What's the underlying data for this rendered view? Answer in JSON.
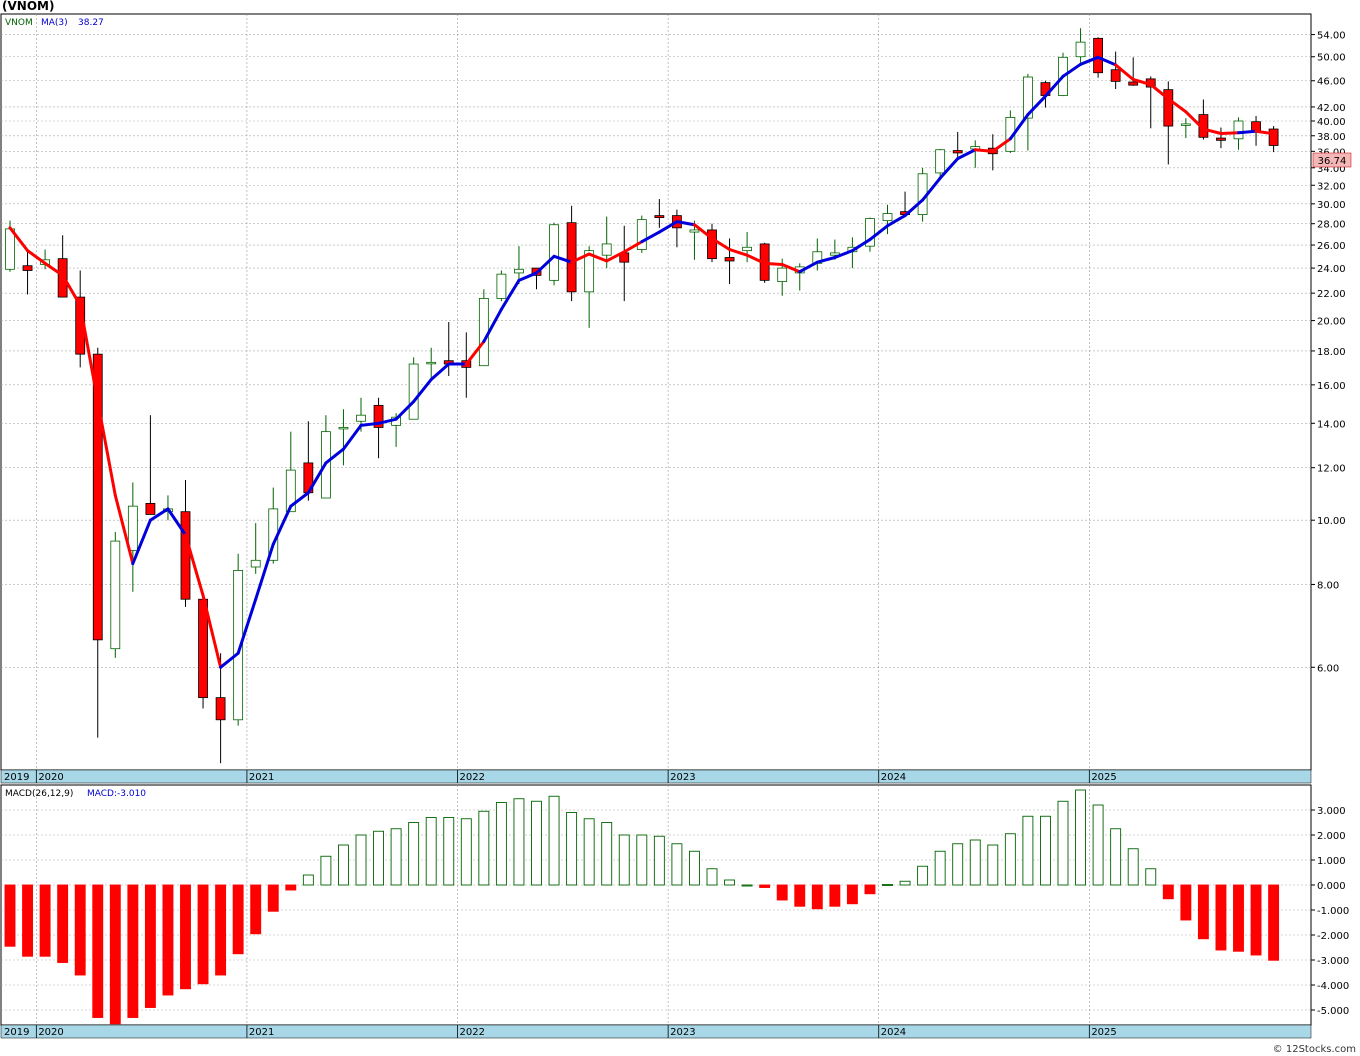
{
  "title": "(VNOM)",
  "credit": "© 12Stocks.com",
  "legend": {
    "symbol": "VNOM",
    "ma_label": "MA(3)",
    "ma_value": "38.27",
    "macd_label": "MACD(26,12,9)",
    "macd_value_label": "MACD:-3.010"
  },
  "last_price_label": "36.74",
  "colors": {
    "up_candle": "#006400",
    "down_candle": "#ff0000",
    "ma_up": "#0000dd",
    "ma_down": "#ff0000",
    "macd_pos": "#006400",
    "macd_neg": "#ff0000",
    "axis_band": "#a8d8e8",
    "grid": "#aaaaaa"
  },
  "chart_data": [
    {
      "type": "candlestick",
      "interval": "monthly",
      "scale": "log",
      "start": "2019-11",
      "ylim": [
        4.2,
        58
      ],
      "yticks": [
        6.0,
        8.0,
        10.0,
        12.0,
        14.0,
        16.0,
        18.0,
        20.0,
        22.0,
        24.0,
        26.0,
        28.0,
        30.0,
        32.0,
        34.0,
        36.0,
        38.0,
        40.0,
        42.0,
        46.0,
        50.0,
        54.0
      ],
      "ytick_labels": [
        "6.00",
        "8.00",
        "10.00",
        "12.00",
        "14.00",
        "16.00",
        "18.00",
        "20.00",
        "22.00",
        "24.00",
        "26.00",
        "28.00",
        "30.00",
        "32.00",
        "34.00",
        "36.00",
        "38.00",
        "40.00",
        "42.00",
        "46.00",
        "50.00",
        "54.00"
      ],
      "xticks": [
        "2019",
        "2020",
        "2021",
        "2022",
        "2023",
        "2024",
        "2025"
      ],
      "ohlc": [
        [
          23.9,
          28.3,
          23.7,
          27.5
        ],
        [
          24.2,
          25.5,
          21.9,
          23.8
        ],
        [
          24.3,
          25.6,
          23.9,
          24.7
        ],
        [
          24.8,
          26.9,
          21.7,
          21.7
        ],
        [
          21.7,
          23.8,
          17.0,
          17.8
        ],
        [
          17.8,
          18.2,
          4.7,
          6.6
        ],
        [
          6.4,
          9.6,
          6.2,
          9.3
        ],
        [
          9.0,
          11.4,
          7.8,
          10.5
        ],
        [
          10.6,
          14.4,
          10.3,
          10.2
        ],
        [
          10.3,
          10.9,
          10.0,
          10.4
        ],
        [
          10.3,
          11.5,
          7.4,
          7.6
        ],
        [
          7.6,
          7.8,
          5.2,
          5.4
        ],
        [
          5.4,
          6.3,
          4.3,
          5.0
        ],
        [
          5.0,
          8.9,
          4.9,
          8.4
        ],
        [
          8.5,
          9.9,
          8.3,
          8.7
        ],
        [
          8.7,
          11.2,
          8.6,
          10.4
        ],
        [
          10.3,
          13.6,
          10.3,
          11.9
        ],
        [
          12.2,
          14.1,
          10.7,
          11.0
        ],
        [
          10.8,
          14.4,
          10.8,
          13.6
        ],
        [
          13.8,
          14.7,
          12.1,
          13.8
        ],
        [
          14.1,
          15.3,
          13.6,
          14.4
        ],
        [
          14.9,
          15.3,
          12.4,
          13.8
        ],
        [
          13.9,
          14.5,
          12.9,
          14.3
        ],
        [
          14.2,
          17.6,
          14.2,
          17.2
        ],
        [
          17.3,
          18.2,
          16.4,
          17.3
        ],
        [
          17.4,
          19.9,
          16.5,
          17.2
        ],
        [
          17.4,
          19.2,
          15.3,
          17.0
        ],
        [
          17.1,
          22.3,
          17.1,
          21.6
        ],
        [
          21.6,
          23.8,
          21.4,
          23.5
        ],
        [
          23.6,
          25.9,
          22.7,
          23.9
        ],
        [
          24.0,
          24.0,
          22.3,
          23.4
        ],
        [
          23.0,
          28.1,
          22.6,
          27.9
        ],
        [
          28.1,
          29.8,
          21.4,
          22.1
        ],
        [
          22.1,
          25.9,
          19.5,
          25.5
        ],
        [
          25.1,
          28.7,
          24.0,
          26.1
        ],
        [
          25.3,
          27.8,
          21.4,
          24.5
        ],
        [
          25.6,
          28.8,
          25.3,
          28.4
        ],
        [
          28.8,
          30.5,
          27.6,
          28.6
        ],
        [
          28.8,
          29.4,
          25.8,
          27.6
        ],
        [
          27.2,
          28.3,
          24.7,
          27.4
        ],
        [
          27.4,
          28.0,
          24.5,
          24.8
        ],
        [
          24.9,
          26.6,
          22.7,
          24.6
        ],
        [
          25.5,
          27.2,
          24.5,
          25.8
        ],
        [
          26.1,
          26.2,
          22.8,
          23.0
        ],
        [
          22.9,
          24.8,
          21.8,
          24.0
        ],
        [
          23.6,
          24.4,
          22.2,
          24.1
        ],
        [
          24.4,
          26.6,
          23.8,
          25.4
        ],
        [
          25.1,
          26.5,
          24.7,
          25.3
        ],
        [
          25.4,
          26.7,
          24.0,
          25.8
        ],
        [
          25.9,
          28.6,
          25.4,
          28.5
        ],
        [
          28.3,
          29.9,
          27.0,
          29.0
        ],
        [
          29.2,
          31.3,
          28.8,
          28.9
        ],
        [
          28.9,
          34.0,
          28.2,
          33.3
        ],
        [
          33.4,
          36.3,
          32.7,
          36.2
        ],
        [
          36.1,
          38.5,
          35.2,
          35.8
        ],
        [
          36.3,
          37.4,
          34.0,
          36.6
        ],
        [
          36.4,
          38.2,
          33.7,
          35.7
        ],
        [
          36.0,
          41.5,
          35.8,
          40.5
        ],
        [
          40.4,
          47.1,
          36.1,
          46.6
        ],
        [
          45.7,
          46.0,
          41.9,
          43.7
        ],
        [
          43.7,
          50.7,
          43.6,
          49.9
        ],
        [
          50.0,
          55.2,
          49.0,
          52.6
        ],
        [
          53.3,
          53.5,
          46.5,
          47.3
        ],
        [
          47.8,
          50.9,
          44.7,
          45.9
        ],
        [
          45.8,
          49.9,
          45.2,
          45.3
        ],
        [
          46.3,
          46.7,
          39.0,
          45.0
        ],
        [
          44.6,
          45.9,
          34.4,
          39.3
        ],
        [
          39.4,
          40.4,
          37.7,
          39.6
        ],
        [
          40.9,
          43.1,
          37.5,
          37.8
        ],
        [
          37.7,
          39.1,
          36.4,
          37.4
        ],
        [
          37.6,
          40.5,
          36.2,
          40.0
        ],
        [
          39.9,
          40.7,
          36.7,
          38.5
        ],
        [
          38.9,
          39.3,
          35.9,
          36.74
        ]
      ],
      "ma3": [
        27.6,
        25.5,
        24.4,
        23.4,
        21.1,
        15.1,
        10.9,
        8.6,
        10.0,
        10.4,
        9.5,
        7.7,
        6.0,
        6.3,
        7.6,
        9.2,
        10.5,
        11.0,
        12.2,
        12.8,
        13.9,
        14.0,
        14.2,
        15.1,
        16.3,
        17.2,
        17.2,
        18.6,
        20.8,
        23.0,
        23.6,
        25.0,
        24.5,
        25.2,
        24.6,
        25.4,
        26.3,
        27.2,
        28.2,
        27.9,
        26.6,
        25.6,
        25.1,
        24.4,
        24.3,
        23.7,
        24.5,
        24.9,
        25.5,
        26.5,
        27.8,
        28.8,
        30.4,
        32.8,
        35.1,
        36.2,
        36.0,
        37.6,
        40.9,
        43.6,
        46.7,
        48.7,
        49.9,
        48.6,
        46.2,
        45.4,
        43.2,
        41.3,
        38.9,
        38.3,
        38.4,
        38.6,
        38.27
      ],
      "ma_dir": [
        0,
        0,
        0,
        0,
        0,
        0,
        0,
        1,
        1,
        1,
        0,
        0,
        1,
        1,
        1,
        1,
        1,
        1,
        1,
        1,
        1,
        1,
        1,
        1,
        1,
        1,
        0,
        1,
        1,
        1,
        1,
        1,
        0,
        0,
        0,
        0,
        1,
        1,
        1,
        0,
        0,
        0,
        0,
        0,
        0,
        1,
        1,
        1,
        1,
        1,
        1,
        1,
        1,
        1,
        1,
        0,
        0,
        1,
        1,
        1,
        1,
        1,
        1,
        0,
        0,
        0,
        0,
        0,
        0,
        0,
        1,
        0,
        0
      ]
    },
    {
      "type": "bar",
      "name": "MACD(26,12,9)",
      "ylim": [
        -5.6,
        4.0
      ],
      "yticks": [
        -5.0,
        -4.0,
        -3.0,
        -2.0,
        -1.0,
        0.0,
        1.0,
        2.0,
        3.0
      ],
      "ytick_labels": [
        "-5.000",
        "-4.000",
        "-3.000",
        "-2.000",
        "-1.000",
        "0.000",
        "1.000",
        "2.000",
        "3.000"
      ],
      "values": [
        -2.45,
        -2.85,
        -2.85,
        -3.1,
        -3.6,
        -5.3,
        -5.55,
        -5.3,
        -4.9,
        -4.4,
        -4.15,
        -3.95,
        -3.6,
        -2.75,
        -1.95,
        -1.05,
        -0.2,
        0.4,
        1.15,
        1.6,
        2.0,
        2.15,
        2.25,
        2.5,
        2.7,
        2.7,
        2.65,
        2.95,
        3.3,
        3.45,
        3.35,
        3.55,
        2.9,
        2.65,
        2.5,
        2.0,
        2.0,
        1.95,
        1.65,
        1.35,
        0.65,
        0.2,
        0.0,
        -0.1,
        -0.6,
        -0.85,
        -0.95,
        -0.85,
        -0.75,
        -0.35,
        0.02,
        0.15,
        0.75,
        1.35,
        1.65,
        1.8,
        1.6,
        2.05,
        2.75,
        2.75,
        3.35,
        3.8,
        3.2,
        2.25,
        1.45,
        0.65,
        -0.55,
        -1.4,
        -2.15,
        -2.6,
        -2.65,
        -2.8,
        -3.01
      ],
      "xticks": [
        "2019",
        "2020",
        "2021",
        "2022",
        "2023",
        "2024",
        "2025"
      ]
    }
  ]
}
